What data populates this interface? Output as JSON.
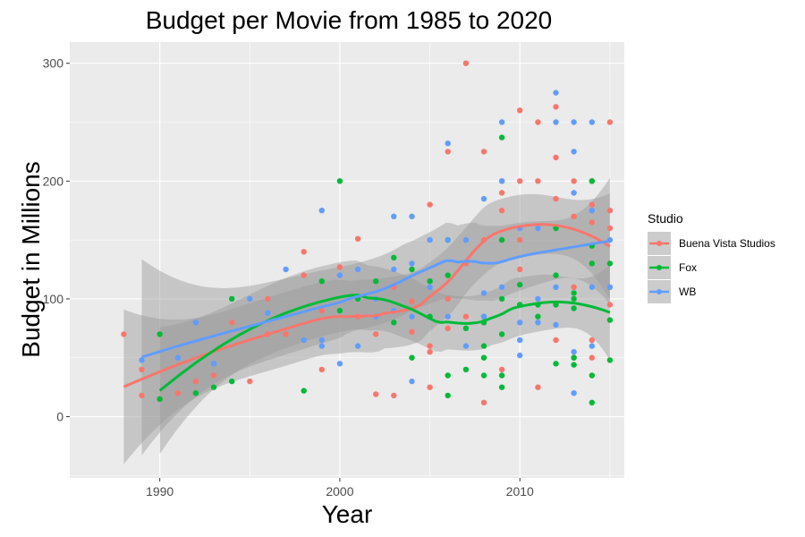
{
  "chart_data": {
    "type": "scatter",
    "title": "Budget per Movie from 1985 to 2020",
    "xlabel": "Year",
    "ylabel": "Budget in Millions",
    "xlim": [
      1985,
      2015.8
    ],
    "ylim": [
      -52,
      318
    ],
    "x_ticks": [
      1990,
      2000,
      2010
    ],
    "y_ticks": [
      0,
      100,
      200,
      300
    ],
    "x_tick_labels": [
      "1990",
      "2000",
      "2010"
    ],
    "y_tick_labels": [
      "0",
      "100",
      "200",
      "300"
    ],
    "grid": true,
    "legend_title": "Studio",
    "legend_position": "right",
    "series": [
      {
        "name": "Buena Vista Studios",
        "color": "#F8766D",
        "points": [
          [
            1988,
            70
          ],
          [
            1989,
            40
          ],
          [
            1989,
            18
          ],
          [
            1990,
            15
          ],
          [
            1991,
            20
          ],
          [
            1992,
            30
          ],
          [
            1993,
            35
          ],
          [
            1994,
            80
          ],
          [
            1995,
            30
          ],
          [
            1996,
            70
          ],
          [
            1996,
            100
          ],
          [
            1997,
            70
          ],
          [
            1998,
            140
          ],
          [
            1998,
            120
          ],
          [
            1999,
            40
          ],
          [
            1999,
            90
          ],
          [
            2000,
            127
          ],
          [
            2000,
            120
          ],
          [
            2001,
            151
          ],
          [
            2001,
            85
          ],
          [
            2002,
            19
          ],
          [
            2002,
            70
          ],
          [
            2003,
            18
          ],
          [
            2003,
            110
          ],
          [
            2004,
            72
          ],
          [
            2004,
            98
          ],
          [
            2005,
            180
          ],
          [
            2005,
            60
          ],
          [
            2005,
            55
          ],
          [
            2005,
            25
          ],
          [
            2006,
            225
          ],
          [
            2006,
            100
          ],
          [
            2006,
            75
          ],
          [
            2007,
            300
          ],
          [
            2007,
            130
          ],
          [
            2007,
            85
          ],
          [
            2008,
            225
          ],
          [
            2008,
            150
          ],
          [
            2008,
            80
          ],
          [
            2008,
            12
          ],
          [
            2009,
            200
          ],
          [
            2009,
            190
          ],
          [
            2009,
            175
          ],
          [
            2009,
            150
          ],
          [
            2009,
            40
          ],
          [
            2010,
            260
          ],
          [
            2010,
            200
          ],
          [
            2010,
            150
          ],
          [
            2010,
            125
          ],
          [
            2011,
            250
          ],
          [
            2011,
            200
          ],
          [
            2011,
            25
          ],
          [
            2012,
            263
          ],
          [
            2012,
            220
          ],
          [
            2012,
            185
          ],
          [
            2012,
            65
          ],
          [
            2013,
            200
          ],
          [
            2013,
            170
          ],
          [
            2013,
            110
          ],
          [
            2013,
            50
          ],
          [
            2014,
            200
          ],
          [
            2014,
            180
          ],
          [
            2014,
            165
          ],
          [
            2014,
            65
          ],
          [
            2014,
            50
          ],
          [
            2015,
            250
          ],
          [
            2015,
            175
          ],
          [
            2015,
            160
          ],
          [
            2015,
            95
          ]
        ]
      },
      {
        "name": "Fox",
        "color": "#00BA38",
        "points": [
          [
            1990,
            70
          ],
          [
            1990,
            15
          ],
          [
            1992,
            20
          ],
          [
            1993,
            25
          ],
          [
            1994,
            100
          ],
          [
            1994,
            30
          ],
          [
            1998,
            22
          ],
          [
            1999,
            115
          ],
          [
            2000,
            200
          ],
          [
            2000,
            90
          ],
          [
            2001,
            100
          ],
          [
            2002,
            115
          ],
          [
            2003,
            135
          ],
          [
            2003,
            80
          ],
          [
            2004,
            125
          ],
          [
            2004,
            50
          ],
          [
            2005,
            115
          ],
          [
            2005,
            85
          ],
          [
            2006,
            150
          ],
          [
            2006,
            120
          ],
          [
            2006,
            35
          ],
          [
            2006,
            18
          ],
          [
            2007,
            75
          ],
          [
            2007,
            40
          ],
          [
            2008,
            85
          ],
          [
            2008,
            80
          ],
          [
            2008,
            60
          ],
          [
            2008,
            50
          ],
          [
            2008,
            35
          ],
          [
            2009,
            237
          ],
          [
            2009,
            150
          ],
          [
            2009,
            100
          ],
          [
            2009,
            70
          ],
          [
            2009,
            35
          ],
          [
            2009,
            25
          ],
          [
            2010,
            112
          ],
          [
            2010,
            95
          ],
          [
            2011,
            95
          ],
          [
            2011,
            85
          ],
          [
            2012,
            160
          ],
          [
            2012,
            120
          ],
          [
            2012,
            45
          ],
          [
            2012,
            95
          ],
          [
            2013,
            105
          ],
          [
            2013,
            100
          ],
          [
            2013,
            92
          ],
          [
            2013,
            50
          ],
          [
            2013,
            44
          ],
          [
            2014,
            200
          ],
          [
            2014,
            145
          ],
          [
            2014,
            130
          ],
          [
            2014,
            35
          ],
          [
            2014,
            12
          ],
          [
            2015,
            130
          ],
          [
            2015,
            82
          ],
          [
            2015,
            48
          ]
        ]
      },
      {
        "name": "WB",
        "color": "#619CFF",
        "points": [
          [
            1989,
            48
          ],
          [
            1991,
            50
          ],
          [
            1992,
            80
          ],
          [
            1993,
            45
          ],
          [
            1995,
            100
          ],
          [
            1996,
            88
          ],
          [
            1997,
            125
          ],
          [
            1998,
            65
          ],
          [
            1999,
            175
          ],
          [
            1999,
            65
          ],
          [
            1999,
            60
          ],
          [
            2000,
            120
          ],
          [
            2000,
            45
          ],
          [
            2001,
            125
          ],
          [
            2001,
            60
          ],
          [
            2002,
            100
          ],
          [
            2002,
            85
          ],
          [
            2003,
            170
          ],
          [
            2003,
            125
          ],
          [
            2003,
            90
          ],
          [
            2004,
            170
          ],
          [
            2004,
            130
          ],
          [
            2004,
            85
          ],
          [
            2004,
            30
          ],
          [
            2005,
            150
          ],
          [
            2005,
            110
          ],
          [
            2006,
            232
          ],
          [
            2006,
            150
          ],
          [
            2006,
            85
          ],
          [
            2007,
            150
          ],
          [
            2007,
            60
          ],
          [
            2008,
            185
          ],
          [
            2008,
            105
          ],
          [
            2008,
            85
          ],
          [
            2009,
            250
          ],
          [
            2009,
            200
          ],
          [
            2009,
            110
          ],
          [
            2010,
            160
          ],
          [
            2010,
            80
          ],
          [
            2010,
            65
          ],
          [
            2010,
            52
          ],
          [
            2011,
            160
          ],
          [
            2011,
            100
          ],
          [
            2011,
            80
          ],
          [
            2012,
            275
          ],
          [
            2012,
            250
          ],
          [
            2012,
            110
          ],
          [
            2012,
            78
          ],
          [
            2013,
            250
          ],
          [
            2013,
            225
          ],
          [
            2013,
            190
          ],
          [
            2013,
            55
          ],
          [
            2013,
            20
          ],
          [
            2014,
            250
          ],
          [
            2014,
            175
          ],
          [
            2014,
            110
          ],
          [
            2014,
            60
          ],
          [
            2015,
            150
          ],
          [
            2015,
            110
          ]
        ]
      }
    ]
  }
}
